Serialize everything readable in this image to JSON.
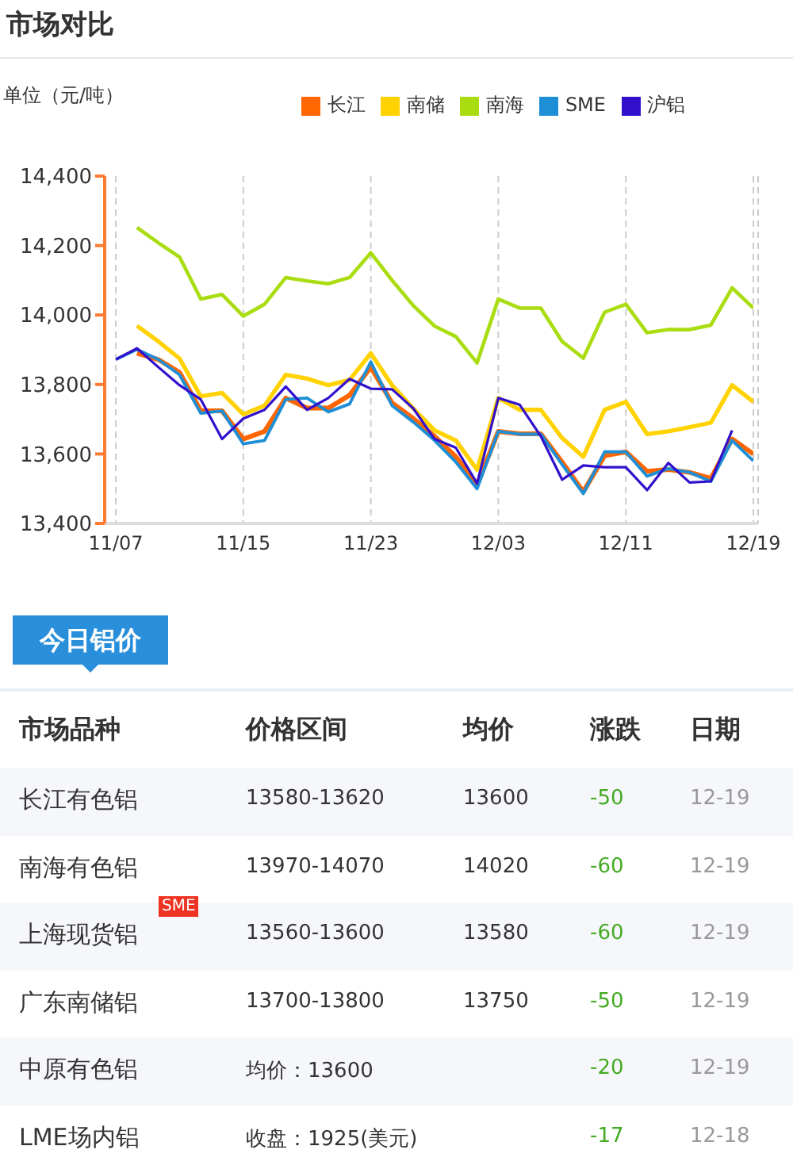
{
  "chart_data": [
    {
      "type": "line",
      "title": "市场对比",
      "ylabel": "单位（元/吨）",
      "categories": [
        "11/07",
        null,
        null,
        null,
        null,
        null,
        "11/15",
        null,
        null,
        null,
        null,
        null,
        "11/23",
        null,
        null,
        null,
        null,
        null,
        "12/03",
        null,
        null,
        null,
        null,
        null,
        "12/11",
        null,
        null,
        null,
        null,
        null,
        "12/19"
      ],
      "series": [
        {
          "name": "长江",
          "color": "#ff6600",
          "values": [
            null,
            13890,
            13872,
            13835,
            13724,
            13724,
            13643,
            13665,
            13761,
            13732,
            13732,
            13769,
            13850,
            13747,
            13702,
            13651,
            13592,
            13511,
            13665,
            13658,
            13658,
            13577,
            13491,
            13595,
            13606,
            13550,
            13555,
            13547,
            13530,
            13643,
            13600
          ]
        },
        {
          "name": "南储",
          "color": "#ffd200",
          "values": [
            null,
            13969,
            13924,
            13875,
            13766,
            13776,
            13714,
            13739,
            13828,
            13817,
            13798,
            13813,
            13890,
            13798,
            13731,
            13668,
            13639,
            13555,
            13761,
            13727,
            13727,
            13646,
            13592,
            13727,
            13750,
            13657,
            13665,
            13677,
            13690,
            13798,
            13750
          ]
        },
        {
          "name": "南海",
          "color": "#aadd11",
          "values": [
            null,
            14252,
            14208,
            14167,
            14046,
            14059,
            13997,
            14031,
            14108,
            14098,
            14090,
            14108,
            14179,
            14100,
            14027,
            13968,
            13938,
            13862,
            14046,
            14020,
            14020,
            13924,
            13876,
            14008,
            14031,
            13949,
            13958,
            13958,
            13971,
            14078,
            14020
          ]
        },
        {
          "name": "SME",
          "color": "#1e8fd6",
          "values": [
            13872,
            13901,
            13872,
            13828,
            13717,
            13724,
            13629,
            13639,
            13757,
            13761,
            13721,
            13744,
            13865,
            13739,
            13692,
            13639,
            13577,
            13500,
            13665,
            13657,
            13657,
            13570,
            13486,
            13606,
            13606,
            13536,
            13558,
            13547,
            13521,
            13639,
            13580
          ]
        },
        {
          "name": "沪铝",
          "color": "#3311cc",
          "values": [
            13872,
            13904,
            13850,
            13798,
            13757,
            13643,
            13702,
            13727,
            13794,
            13727,
            13761,
            13816,
            13788,
            13786,
            13731,
            13643,
            13618,
            13515,
            13761,
            13742,
            13651,
            13526,
            13567,
            13562,
            13562,
            13496,
            13574,
            13518,
            13521,
            13668,
            null
          ]
        }
      ],
      "ylim": [
        13400,
        14400
      ],
      "yticks": [
        {
          "value": 13400,
          "label": "13,400"
        },
        {
          "value": 13600,
          "label": "13,600"
        },
        {
          "value": 13800,
          "label": "13,800"
        },
        {
          "value": 14000,
          "label": "14,000"
        },
        {
          "value": 14200,
          "label": "14,200"
        },
        {
          "value": 14400,
          "label": "14,400"
        }
      ],
      "grid": "x",
      "legend": "top right",
      "marker": "none",
      "line_style": "solid"
    },
    {
      "type": "other",
      "title": "今日铝价",
      "categories": [
        "市场品种",
        "价格区间",
        "均价",
        "涨跌",
        "日期"
      ],
      "y_categories": [
        "长江有色铝",
        "南海有色铝",
        "上海现货铝",
        "广东南储铝",
        "中原有色铝",
        "LME场内铝"
      ],
      "cell_labels": [
        [
          "13580-13620",
          "13600",
          "-50",
          "12-19"
        ],
        [
          "13970-14070",
          "14020",
          "-60",
          "12-19"
        ],
        [
          "13560-13600",
          "13580",
          "-60",
          "12-19"
        ],
        [
          "13700-13800",
          "13750",
          "-50",
          "12-19"
        ],
        [
          "均价：13600",
          null,
          "-20",
          "12-19"
        ],
        [
          "收盘：1925(美元)",
          null,
          "-17",
          "12-18"
        ]
      ],
      "annotations": [
        "SME"
      ]
    }
  ]
}
